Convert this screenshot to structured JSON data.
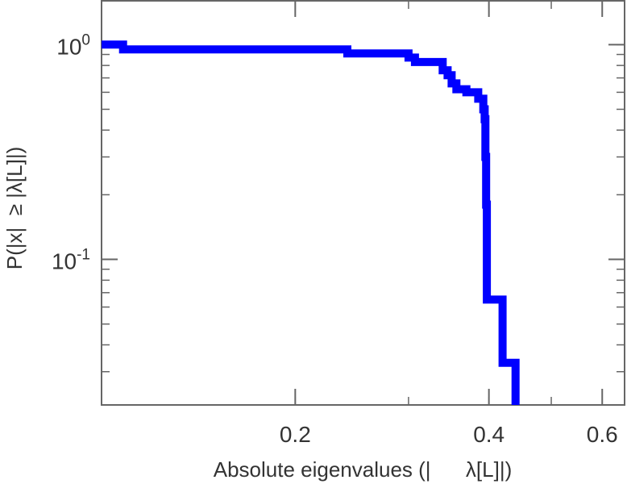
{
  "chart_data": {
    "type": "line",
    "title": "",
    "xlabel": "Absolute eigenvalues (|      λ[L]|)",
    "ylabel": "P(|x|  ≥ |λ[L]|)",
    "x_scale": "log",
    "y_scale": "log",
    "xlim": [
      0.1,
      0.65
    ],
    "ylim": [
      0.021,
      1.6
    ],
    "x_ticks": [
      {
        "value": 0.2,
        "label": "0.2"
      },
      {
        "value": 0.4,
        "label": "0.4"
      },
      {
        "value": 0.6,
        "label": "0.6"
      }
    ],
    "y_ticks": [
      {
        "value": 1.0,
        "base": "10",
        "exp": "0"
      },
      {
        "value": 0.1,
        "base": "10",
        "exp": "-1"
      }
    ],
    "grid": false,
    "color": "#0000ff",
    "series": [
      {
        "x": [
          0.1,
          0.108,
          0.108,
          0.241,
          0.241,
          0.3,
          0.3,
          0.307,
          0.307,
          0.339,
          0.339,
          0.345,
          0.345,
          0.35,
          0.35,
          0.356,
          0.356,
          0.369,
          0.369,
          0.385,
          0.385,
          0.392,
          0.392,
          0.394,
          0.394,
          0.395,
          0.395,
          0.396,
          0.396,
          0.397,
          0.397,
          0.397,
          0.397,
          0.4,
          0.4,
          0.42,
          0.42,
          0.44,
          0.44
        ],
        "y": [
          1.0,
          1.0,
          0.95,
          0.95,
          0.91,
          0.91,
          0.87,
          0.87,
          0.83,
          0.83,
          0.76,
          0.76,
          0.72,
          0.72,
          0.66,
          0.66,
          0.62,
          0.62,
          0.6,
          0.6,
          0.56,
          0.56,
          0.5,
          0.5,
          0.45,
          0.45,
          0.3,
          0.3,
          0.18,
          0.18,
          0.1,
          0.1,
          0.065,
          0.065,
          0.065,
          0.065,
          0.033,
          0.033,
          0.021
        ]
      }
    ]
  }
}
